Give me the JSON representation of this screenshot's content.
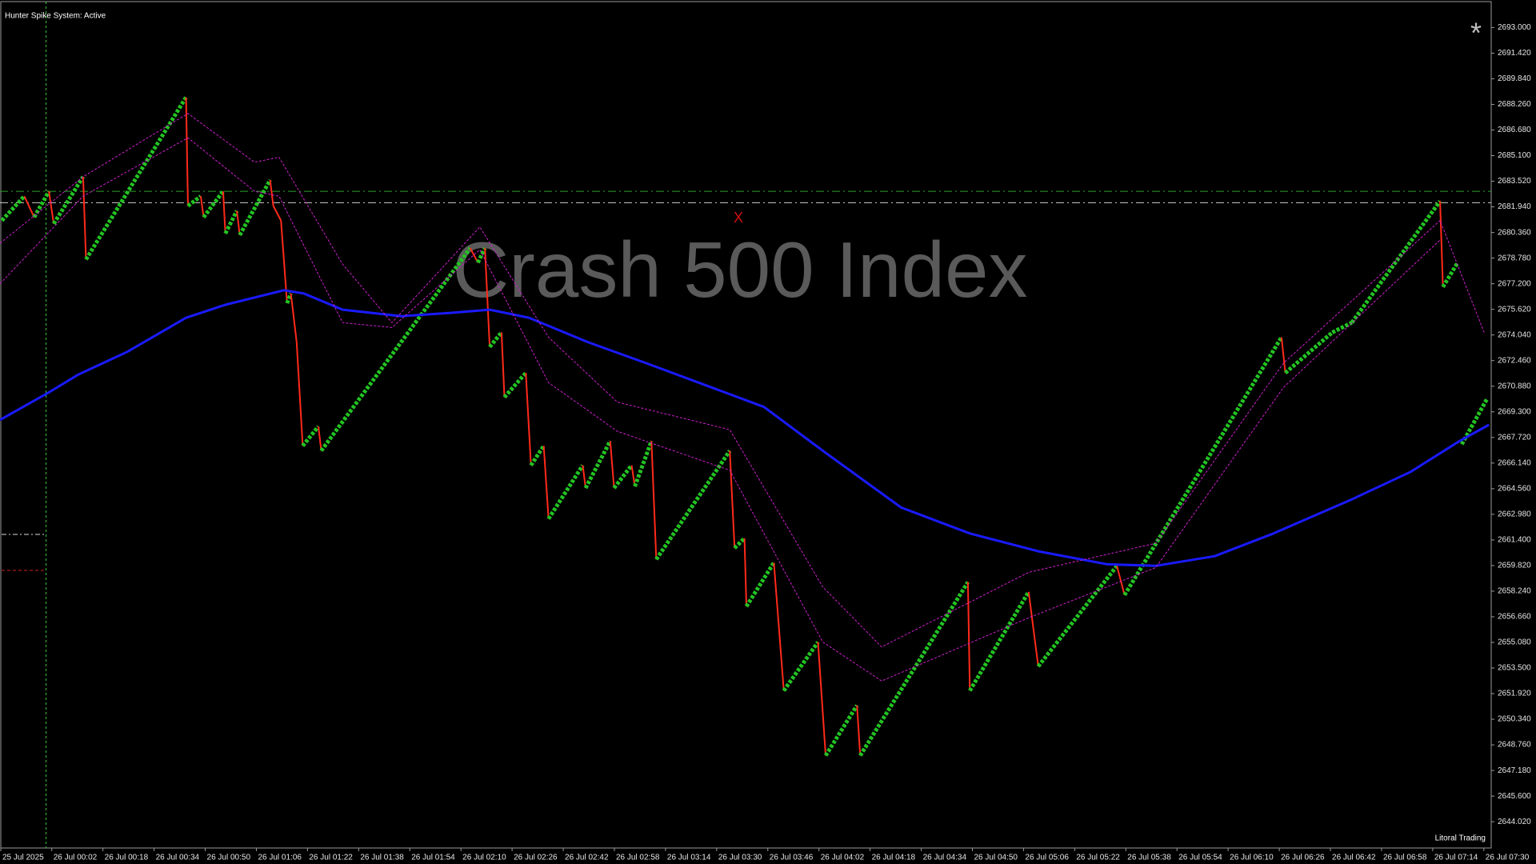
{
  "chart_data": {
    "type": "line",
    "title": "Crash 500 Index",
    "subtitle": "Hunter Spike System: Active",
    "footer": "Litoral Trading",
    "marker_text": "X",
    "corner_mark": "*",
    "xlim": [
      -14.2,
      452.3
    ],
    "ylim": [
      2642.4,
      2694.6
    ],
    "grid": false,
    "xticks": [
      {
        "value": -14,
        "label": "25 Jul 2025"
      },
      {
        "value": 2,
        "label": "26 Jul 00:02"
      },
      {
        "value": 18,
        "label": "26 Jul 00:18"
      },
      {
        "value": 34,
        "label": "26 Jul 00:34"
      },
      {
        "value": 50,
        "label": "26 Jul 00:50"
      },
      {
        "value": 66,
        "label": "26 Jul 01:06"
      },
      {
        "value": 82,
        "label": "26 Jul 01:22"
      },
      {
        "value": 98,
        "label": "26 Jul 01:38"
      },
      {
        "value": 114,
        "label": "26 Jul 01:54"
      },
      {
        "value": 130,
        "label": "26 Jul 02:10"
      },
      {
        "value": 146,
        "label": "26 Jul 02:26"
      },
      {
        "value": 162,
        "label": "26 Jul 02:42"
      },
      {
        "value": 178,
        "label": "26 Jul 02:58"
      },
      {
        "value": 194,
        "label": "26 Jul 03:14"
      },
      {
        "value": 210,
        "label": "26 Jul 03:30"
      },
      {
        "value": 226,
        "label": "26 Jul 03:46"
      },
      {
        "value": 242,
        "label": "26 Jul 04:02"
      },
      {
        "value": 258,
        "label": "26 Jul 04:18"
      },
      {
        "value": 274,
        "label": "26 Jul 04:34"
      },
      {
        "value": 290,
        "label": "26 Jul 04:50"
      },
      {
        "value": 306,
        "label": "26 Jul 05:06"
      },
      {
        "value": 322,
        "label": "26 Jul 05:22"
      },
      {
        "value": 338,
        "label": "26 Jul 05:38"
      },
      {
        "value": 354,
        "label": "26 Jul 05:54"
      },
      {
        "value": 370,
        "label": "26 Jul 06:10"
      },
      {
        "value": 386,
        "label": "26 Jul 06:26"
      },
      {
        "value": 402,
        "label": "26 Jul 06:42"
      },
      {
        "value": 418,
        "label": "26 Jul 06:58"
      },
      {
        "value": 434,
        "label": "26 Jul 07:14"
      },
      {
        "value": 450,
        "label": "26 Jul 07:30"
      }
    ],
    "yticks": [
      {
        "value": 2693,
        "label": "2693.000"
      },
      {
        "value": 2691.42,
        "label": "2691.420"
      },
      {
        "value": 2689.84,
        "label": "2689.840"
      },
      {
        "value": 2688.26,
        "label": "2688.260"
      },
      {
        "value": 2686.68,
        "label": "2686.680"
      },
      {
        "value": 2685.1,
        "label": "2685.100"
      },
      {
        "value": 2683.52,
        "label": "2683.520"
      },
      {
        "value": 2681.94,
        "label": "2681.940"
      },
      {
        "value": 2680.36,
        "label": "2680.360"
      },
      {
        "value": 2678.78,
        "label": "2678.780"
      },
      {
        "value": 2677.2,
        "label": "2677.200"
      },
      {
        "value": 2675.62,
        "label": "2675.620"
      },
      {
        "value": 2674.04,
        "label": "2674.040"
      },
      {
        "value": 2672.46,
        "label": "2672.460"
      },
      {
        "value": 2670.88,
        "label": "2670.880"
      },
      {
        "value": 2669.3,
        "label": "2669.300"
      },
      {
        "value": 2667.72,
        "label": "2667.720"
      },
      {
        "value": 2666.14,
        "label": "2666.140"
      },
      {
        "value": 2664.56,
        "label": "2664.560"
      },
      {
        "value": 2662.98,
        "label": "2662.980"
      },
      {
        "value": 2661.4,
        "label": "2661.400"
      },
      {
        "value": 2659.82,
        "label": "2659.820"
      },
      {
        "value": 2658.24,
        "label": "2658.240"
      },
      {
        "value": 2656.66,
        "label": "2656.660"
      },
      {
        "value": 2655.08,
        "label": "2655.080"
      },
      {
        "value": 2653.5,
        "label": "2653.500"
      },
      {
        "value": 2651.92,
        "label": "2651.920"
      },
      {
        "value": 2650.34,
        "label": "2650.340"
      },
      {
        "value": 2648.76,
        "label": "2648.760"
      },
      {
        "value": 2647.18,
        "label": "2647.180"
      },
      {
        "value": 2645.6,
        "label": "2645.600"
      },
      {
        "value": 2644.02,
        "label": "2644.020"
      }
    ],
    "hlines": [
      {
        "value": 2682.9,
        "color": "#2ca02c"
      },
      {
        "value": 2682.2,
        "color": "#d0d0d0"
      }
    ],
    "vline": {
      "value": 0.2,
      "color": "#3cc83c"
    },
    "series": [
      {
        "up_color": "#22c322",
        "down_color": "#ff2a1a",
        "x": [
          -13.6,
          -6.6,
          -3.5,
          1.1,
          2.6,
          11.8,
          12.7,
          44.0,
          44.6,
          48.6,
          49.5,
          55.6,
          56.3,
          59.9,
          60.8,
          70.3,
          71.3,
          73.7,
          74.6,
          75.6,
          76.8,
          78.6,
          80.5,
          85.4,
          86.3,
          132.9,
          135.3,
          137.5,
          139.0,
          142.7,
          143.6,
          150.3,
          151.9,
          155.9,
          157.4,
          168.1,
          169.0,
          176.7,
          177.9,
          183.4,
          184.4,
          189.6,
          191.1,
          214.1,
          215.6,
          218.7,
          219.3,
          227.9,
          231.0,
          241.7,
          244.1,
          253.9,
          254.9,
          288.6,
          289.2,
          307.6,
          310.6,
          335.2,
          337.6,
          386.7,
          387.9,
          402.6,
          408.7,
          436.3,
          437.2,
          441.8,
          null,
          443.1,
          451.0
        ],
        "values": [
          2681.1,
          2682.6,
          2681.3,
          2682.9,
          2680.9,
          2683.8,
          2678.7,
          2688.7,
          2682.0,
          2682.6,
          2681.3,
          2682.9,
          2680.3,
          2681.7,
          2680.2,
          2683.6,
          2682.0,
          2681.1,
          2678.7,
          2676.0,
          2676.6,
          2673.6,
          2667.2,
          2668.4,
          2666.9,
          2679.4,
          2678.5,
          2679.4,
          2673.3,
          2674.2,
          2670.2,
          2671.7,
          2666.0,
          2667.2,
          2662.7,
          2666.0,
          2664.6,
          2667.5,
          2664.6,
          2666.0,
          2664.7,
          2667.5,
          2660.2,
          2666.9,
          2660.9,
          2661.5,
          2657.3,
          2660.0,
          2652.1,
          2655.1,
          2648.1,
          2651.2,
          2648.1,
          2658.8,
          2652.1,
          2658.2,
          2653.6,
          2659.8,
          2658.0,
          2673.9,
          2671.7,
          2674.2,
          2674.8,
          2682.3,
          2677.0,
          2678.5,
          null,
          2667.3,
          2670.1
        ]
      },
      {
        "color": "#1a1aff",
        "width": 3,
        "x": [
          -14.2,
          1.1,
          10.3,
          25.6,
          44.0,
          56.3,
          74.6,
          80.8,
          93.0,
          111.4,
          126.7,
          139.0,
          151.3,
          169.7,
          188.0,
          212.6,
          224.8,
          243.2,
          267.7,
          289.2,
          310.6,
          332.1,
          347.4,
          365.8,
          384.2,
          408.7,
          427.1,
          442.4,
          451.6
        ],
        "values": [
          2668.8,
          2670.5,
          2671.6,
          2673.0,
          2675.1,
          2675.9,
          2676.8,
          2676.6,
          2675.6,
          2675.2,
          2675.4,
          2675.6,
          2675.1,
          2673.6,
          2672.3,
          2670.5,
          2669.6,
          2666.9,
          2663.4,
          2661.8,
          2660.7,
          2659.9,
          2659.8,
          2660.4,
          2661.8,
          2663.9,
          2665.6,
          2667.5,
          2668.5
        ]
      },
      {
        "color": "#d020d0",
        "width": 1,
        "dashed": true,
        "x": [
          -14.2,
          11.8,
          44.6,
          65.4,
          73.1,
          93.0,
          108.4,
          135.9,
          157.4,
          178.9,
          214.1,
          243.2,
          261.6,
          307.6,
          347.4,
          387.3,
          436.3,
          450.1
        ],
        "values": [
          2679.7,
          2683.8,
          2687.7,
          2684.7,
          2685.0,
          2678.4,
          2674.8,
          2680.7,
          2673.9,
          2669.9,
          2668.2,
          2658.5,
          2654.8,
          2659.4,
          2661.2,
          2672.3,
          2681.1,
          2674.2
        ]
      },
      {
        "color": "#d020d0",
        "width": 1,
        "dashed": true,
        "x": [
          -14.2,
          11.8,
          44.6,
          65.4,
          73.1,
          93.0,
          108.4,
          135.9,
          157.4,
          178.9,
          214.1,
          243.2,
          261.6,
          307.6,
          347.4,
          387.3,
          436.3
        ],
        "values": [
          2677.2,
          2682.6,
          2686.2,
          2682.9,
          2682.6,
          2674.8,
          2674.5,
          2679.3,
          2671.1,
          2668.1,
          2665.7,
          2655.1,
          2652.7,
          2656.6,
          2659.7,
          2670.8,
          2679.9
        ]
      }
    ]
  }
}
